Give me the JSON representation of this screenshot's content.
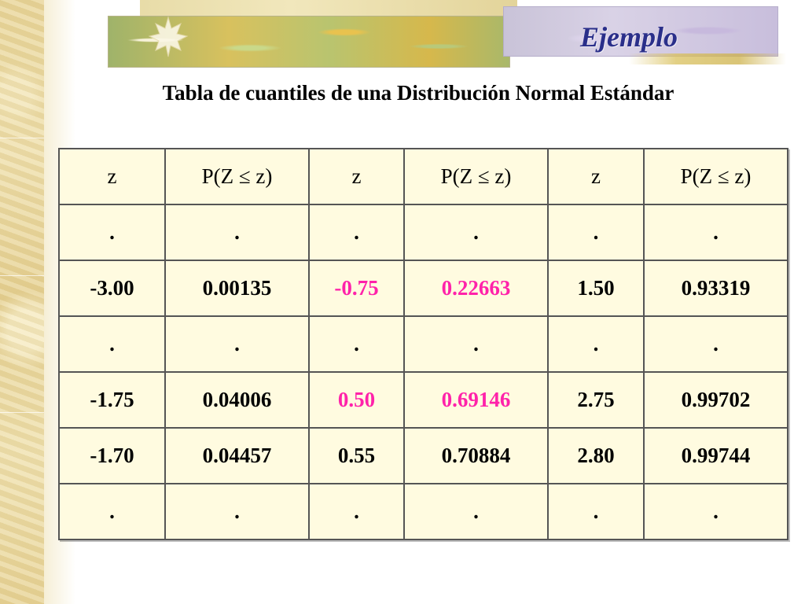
{
  "slide": {
    "header_title": "Ejemplo",
    "page_title": "Tabla de cuantiles de una Distribución Normal Estándar"
  },
  "colors": {
    "highlight": "#ff22aa",
    "header_title": "#2a2f8a",
    "table_background": "#fffbe0"
  },
  "icons": {
    "banner_leaf": "maple-leaf-icon"
  },
  "table": {
    "headers": [
      "z",
      "P(Z ≤ z)",
      "z",
      "P(Z ≤ z)",
      "z",
      "P(Z ≤ z)"
    ],
    "rows": [
      {
        "cells": [
          ".",
          ".",
          ".",
          ".",
          ".",
          "."
        ],
        "highlight": [
          false,
          false,
          false,
          false,
          false,
          false
        ]
      },
      {
        "cells": [
          "-3.00",
          "0.00135",
          "-0.75",
          "0.22663",
          "1.50",
          "0.93319"
        ],
        "highlight": [
          false,
          false,
          true,
          true,
          false,
          false
        ]
      },
      {
        "cells": [
          ".",
          ".",
          ".",
          ".",
          ".",
          "."
        ],
        "highlight": [
          false,
          false,
          false,
          false,
          false,
          false
        ]
      },
      {
        "cells": [
          "-1.75",
          "0.04006",
          "0.50",
          "0.69146",
          "2.75",
          "0.99702"
        ],
        "highlight": [
          false,
          false,
          true,
          true,
          false,
          false
        ]
      },
      {
        "cells": [
          "-1.70",
          "0.04457",
          "0.55",
          "0.70884",
          "2.80",
          "0.99744"
        ],
        "highlight": [
          false,
          false,
          false,
          false,
          false,
          false
        ]
      },
      {
        "cells": [
          ".",
          ".",
          ".",
          ".",
          ".",
          "."
        ],
        "highlight": [
          false,
          false,
          false,
          false,
          false,
          false
        ]
      }
    ]
  }
}
